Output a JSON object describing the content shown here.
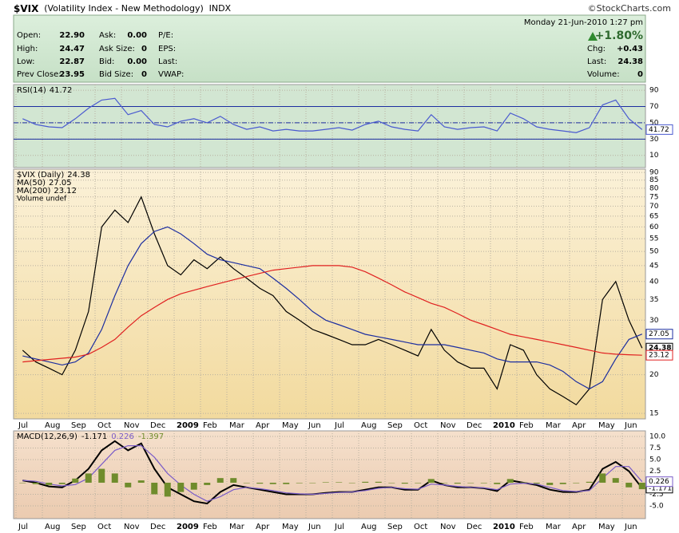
{
  "header": {
    "symbol": "$VIX",
    "name": "(Volatility Index - New Methodology)",
    "exchange": "INDX",
    "copyright": "©StockCharts.com"
  },
  "quote": {
    "left": [
      [
        "Open:",
        "22.90"
      ],
      [
        "High:",
        "24.47"
      ],
      [
        "Low:",
        "22.87"
      ],
      [
        "Prev Close:",
        "23.95"
      ]
    ],
    "middle": [
      [
        "Ask:",
        "0.00"
      ],
      [
        "Ask Size:",
        "0"
      ],
      [
        "Bid:",
        "0.00"
      ],
      [
        "Bid Size:",
        "0"
      ]
    ],
    "right_labels": [
      "P/E:",
      "EPS:",
      "Last:",
      "VWAP:"
    ],
    "timestamp": "Monday  21-Jun-2010  1:27 pm",
    "change_percent": "+1.80%",
    "summary": [
      [
        "Chg:",
        "+0.43"
      ],
      [
        "Last:",
        "24.38"
      ],
      [
        "Volume:",
        "0"
      ]
    ]
  },
  "chart_data": [
    {
      "type": "line",
      "ylim": [
        -5,
        97
      ],
      "yticks": [
        90,
        70,
        50,
        30,
        10
      ],
      "overbought": 70,
      "oversold": 30,
      "centerline": 50,
      "grid": true,
      "series": [
        {
          "name": "RSI(14)",
          "color": "#4a5ad0",
          "values": [
            55,
            48,
            45,
            44,
            55,
            68,
            78,
            80,
            60,
            65,
            48,
            45,
            52,
            55,
            50,
            58,
            48,
            42,
            45,
            40,
            42,
            40,
            40,
            42,
            44,
            41,
            48,
            52,
            45,
            42,
            40,
            60,
            45,
            42,
            44,
            45,
            40,
            62,
            55,
            45,
            42,
            40,
            38,
            44,
            72,
            78,
            55,
            41.72
          ]
        }
      ]
    },
    {
      "type": "line",
      "log": true,
      "ylim": [
        14.4,
        92.2
      ],
      "yticks": [
        90,
        85,
        80,
        75,
        70,
        65,
        60,
        55,
        50,
        45,
        40,
        35,
        30,
        20,
        15
      ],
      "grid": true,
      "x_labels": [
        "Jul",
        "Aug",
        "Sep",
        "Oct",
        "Nov",
        "Dec",
        "2009",
        "Feb",
        "Mar",
        "Apr",
        "May",
        "Jun",
        "Jul",
        "Aug",
        "Sep",
        "Oct",
        "Nov",
        "Dec",
        "2010",
        "Feb",
        "Mar",
        "Apr",
        "May",
        "Jun"
      ],
      "volume_legend": "Volume undef",
      "series": [
        {
          "name": "$VIX (Daily)",
          "color": "#000000",
          "values": [
            24,
            22,
            21,
            20,
            24,
            32,
            60,
            68,
            62,
            75,
            57,
            45,
            42,
            47,
            44,
            48,
            44,
            41,
            38,
            36,
            32,
            30,
            28,
            27,
            26,
            25,
            25,
            26,
            25,
            24,
            23,
            28,
            24,
            22,
            21,
            21,
            18,
            25,
            24,
            20,
            18,
            17,
            16,
            18,
            35,
            40,
            30,
            24.38
          ]
        },
        {
          "name": "MA(50)",
          "color": "#1c2ea0",
          "values": [
            23,
            22.5,
            22,
            21.5,
            22,
            23.5,
            28,
            36,
            45,
            53,
            58,
            60,
            57,
            53,
            49,
            47,
            46,
            45,
            44,
            41,
            38,
            35,
            32,
            30,
            29,
            28,
            27,
            26.5,
            26,
            25.5,
            25,
            25,
            25,
            24.5,
            24,
            23.5,
            22.5,
            22,
            22,
            22,
            21.5,
            20.5,
            19,
            18,
            19,
            22.5,
            26,
            27.05
          ]
        },
        {
          "name": "MA(200)",
          "color": "#e02020",
          "values": [
            22,
            22.2,
            22.4,
            22.6,
            22.8,
            23.3,
            24.5,
            26,
            28.5,
            31,
            33,
            35,
            36.5,
            37.5,
            38.5,
            39.5,
            40.5,
            41.5,
            42.5,
            43.5,
            44,
            44.5,
            45,
            45,
            45,
            44.5,
            43,
            41,
            39,
            37,
            35.5,
            34,
            33,
            31.5,
            30,
            29,
            28,
            27,
            26.5,
            26,
            25.5,
            25,
            24.5,
            24,
            23.5,
            23.3,
            23.2,
            23.12
          ]
        }
      ]
    },
    {
      "type": "line",
      "title": "MACD(12,26,9)",
      "ylim": [
        -7.76,
        11.2
      ],
      "yticks": [
        {
          "value": 10,
          "label": "10.0"
        },
        7.5,
        {
          "value": 5,
          "label": "5.0"
        },
        2.5,
        -2.5,
        {
          "value": -5,
          "label": "-5.0"
        }
      ],
      "grid": true,
      "series": [
        {
          "color": "#000000",
          "values": [
            0.5,
            0,
            -0.8,
            -1,
            0.5,
            3,
            7,
            9,
            7,
            8.5,
            3,
            -1,
            -2.5,
            -4,
            -4.5,
            -2,
            -0.5,
            -1,
            -1.5,
            -2,
            -2.5,
            -2.5,
            -2.5,
            -2.2,
            -2,
            -2,
            -1.5,
            -1,
            -1,
            -1.5,
            -1.5,
            0.5,
            -0.5,
            -1,
            -1,
            -1.2,
            -1.8,
            0.5,
            0,
            -0.5,
            -1.5,
            -2,
            -2,
            -1.5,
            3,
            4.5,
            2.5,
            -1.171
          ]
        },
        {
          "color": "#7a5cc8",
          "values": [
            0.5,
            0.3,
            -0.3,
            -0.7,
            -0.4,
            1,
            4,
            7,
            8,
            8,
            5.5,
            2,
            -0.5,
            -2.5,
            -4,
            -3,
            -1.5,
            -1,
            -1.3,
            -1.7,
            -2.2,
            -2.4,
            -2.5,
            -2.3,
            -2.1,
            -2,
            -1.7,
            -1.2,
            -1,
            -1.3,
            -1.4,
            -0.3,
            -0.5,
            -0.8,
            -1,
            -1.1,
            -1.5,
            -0.3,
            -0.1,
            -0.3,
            -1,
            -1.7,
            -1.9,
            -1.7,
            1,
            3.5,
            3.5,
            0.226
          ]
        },
        {
          "type": "bar",
          "color": "#6f8c2c",
          "values": [
            0,
            -0.3,
            -0.5,
            -0.3,
            0.9,
            2,
            3,
            2,
            -1,
            0.5,
            -2.5,
            -3,
            -2,
            -1.5,
            -0.5,
            1,
            1,
            0,
            -0.2,
            -0.3,
            -0.3,
            -0.1,
            0,
            0.1,
            0.1,
            0,
            0.2,
            0.2,
            0,
            -0.2,
            -0.1,
            0.8,
            0,
            -0.2,
            0,
            -0.1,
            -0.3,
            0.8,
            0.1,
            -0.2,
            -0.5,
            -0.3,
            -0.1,
            0.2,
            2,
            1,
            -1,
            -1.397
          ]
        }
      ]
    }
  ]
}
